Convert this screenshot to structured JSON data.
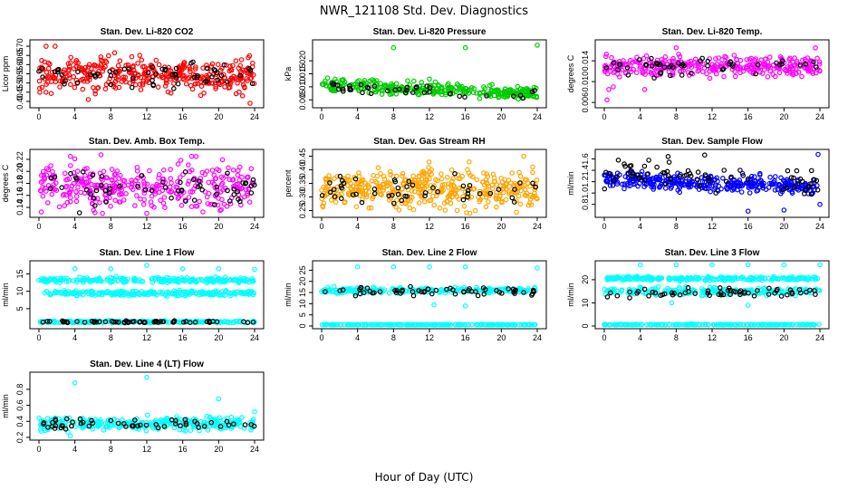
{
  "page": {
    "title": "NWR_121108 Std. Dev. Diagnostics",
    "x_axis_label": "Hour of Day (UTC)"
  },
  "chart_data": [
    {
      "type": "scatter",
      "title": "Stan. Dev. Li-820 CO2",
      "ylabel": "Licor ppm",
      "color": "#ff0000",
      "xlim": [
        0,
        24
      ],
      "ylim": [
        0.38,
        0.72
      ],
      "xticks": [
        "0",
        "4",
        "8",
        "12",
        "16",
        "20",
        "24"
      ],
      "yticks": [
        "0.40",
        "0.45",
        "0.50",
        "0.55",
        "0.60",
        "0.65",
        "0.70"
      ],
      "series": [
        {
          "name": "main",
          "mean": 0.545,
          "spread": 0.045,
          "count": 360
        },
        {
          "name": "black",
          "mean": 0.545,
          "spread": 0.035,
          "count": 60
        }
      ],
      "outliers": [
        [
          0.8,
          0.7
        ],
        [
          1.8,
          0.7
        ],
        [
          23.5,
          0.39
        ],
        [
          5.5,
          0.41
        ]
      ]
    },
    {
      "type": "scatter",
      "title": "Stan. Dev. Li-820 Pressure",
      "ylabel": "kPa",
      "color": "#00cc00",
      "xlim": [
        0,
        24
      ],
      "ylim": [
        0.003,
        0.027
      ],
      "xticks": [
        "0",
        "4",
        "8",
        "12",
        "16",
        "20",
        "24"
      ],
      "yticks": [
        "0.005",
        "0.010",
        "0.015",
        "0.020"
      ],
      "series": [
        {
          "name": "main",
          "mean_start": 0.0105,
          "mean_end": 0.0075,
          "spread": 0.0012,
          "count": 320
        },
        {
          "name": "black",
          "mean_start": 0.01,
          "mean_end": 0.007,
          "spread": 0.001,
          "count": 40
        }
      ],
      "outliers": [
        [
          8,
          0.025
        ],
        [
          16,
          0.025
        ],
        [
          24,
          0.026
        ],
        [
          1.5,
          0.013
        ],
        [
          12,
          0.013
        ]
      ]
    },
    {
      "type": "scatter",
      "title": "Stan. Dev. Li-820 Temp.",
      "ylabel": "degrees C",
      "color": "#ff00ff",
      "xlim": [
        0,
        24
      ],
      "ylim": [
        0.0055,
        0.0175
      ],
      "xticks": [
        "0",
        "4",
        "8",
        "12",
        "16",
        "20",
        "24"
      ],
      "yticks": [
        "0.006",
        "0.010",
        "0.014"
      ],
      "series": [
        {
          "name": "main",
          "mean": 0.013,
          "spread": 0.001,
          "count": 330
        },
        {
          "name": "black",
          "mean": 0.0128,
          "spread": 0.0008,
          "count": 50
        }
      ],
      "outliers": [
        [
          0.3,
          0.0065
        ],
        [
          0.5,
          0.0085
        ],
        [
          1.0,
          0.009
        ],
        [
          8,
          0.0165
        ],
        [
          23.5,
          0.0165
        ],
        [
          4.5,
          0.0085
        ]
      ]
    },
    {
      "type": "scatter",
      "title": "Stan. Dev. Amb. Box Temp.",
      "ylabel": "degrees C",
      "color": "#ff00ff",
      "xlim": [
        0,
        24
      ],
      "ylim": [
        0.128,
        0.232
      ],
      "xticks": [
        "0",
        "4",
        "8",
        "12",
        "16",
        "20",
        "24"
      ],
      "yticks": [
        "0.14",
        "0.16",
        "0.18",
        "0.20",
        "0.22"
      ],
      "series": [
        {
          "name": "main",
          "mean": 0.175,
          "spread": 0.018,
          "count": 340
        },
        {
          "name": "black",
          "mean": 0.17,
          "spread": 0.015,
          "count": 60
        }
      ],
      "outliers": [
        [
          12,
          0.13
        ],
        [
          3.5,
          0.225
        ],
        [
          17,
          0.225
        ]
      ]
    },
    {
      "type": "scatter",
      "title": "Stan. Dev. Gas Stream RH",
      "ylabel": "percent",
      "color": "#ffa500",
      "xlim": [
        0,
        24
      ],
      "ylim": [
        0.235,
        0.465
      ],
      "xticks": [
        "0",
        "4",
        "8",
        "12",
        "16",
        "20",
        "24"
      ],
      "yticks": [
        "0.25",
        "0.30",
        "0.35",
        "0.40",
        "0.45"
      ],
      "series": [
        {
          "name": "main",
          "mean": 0.33,
          "spread": 0.035,
          "count": 420
        },
        {
          "name": "black",
          "mean": 0.33,
          "spread": 0.03,
          "count": 50
        }
      ],
      "outliers": [
        [
          22.5,
          0.45
        ],
        [
          16.5,
          0.24
        ]
      ]
    },
    {
      "type": "scatter",
      "title": "Stan. Dev. Sample Flow",
      "ylabel": "ml/min",
      "color": "#0000ff",
      "xlim": [
        0,
        24
      ],
      "ylim": [
        0.62,
        1.72
      ],
      "xticks": [
        "0",
        "4",
        "8",
        "12",
        "16",
        "20",
        "24"
      ],
      "yticks": [
        "0.8",
        "1.0",
        "1.2",
        "1.4",
        "1.6"
      ],
      "series": [
        {
          "name": "main",
          "mean_start": 1.25,
          "mean_end": 1.1,
          "spread": 0.07,
          "count": 360
        },
        {
          "name": "black",
          "mean_start": 1.38,
          "mean_end": 1.2,
          "spread": 0.15,
          "count": 70
        }
      ],
      "outliers": [
        [
          16,
          0.68
        ],
        [
          20,
          0.7
        ],
        [
          24,
          0.8
        ],
        [
          23.8,
          1.68
        ]
      ]
    },
    {
      "type": "scatter",
      "title": "Stan. Dev. Line 1 Flow",
      "ylabel": "ml/min",
      "color": "#00ffff",
      "xlim": [
        0,
        24
      ],
      "ylim": [
        0,
        18
      ],
      "xticks": [
        "0",
        "4",
        "8",
        "12",
        "16",
        "20",
        "24"
      ],
      "yticks": [
        "5",
        "10",
        "15"
      ],
      "series": [
        {
          "name": "band_high",
          "mean": 13.2,
          "spread": 0.35,
          "count": 240
        },
        {
          "name": "band_mid",
          "mean": 9.5,
          "spread": 0.35,
          "count": 240
        },
        {
          "name": "band_low",
          "mean": 1.2,
          "spread": 0.15,
          "count": 200
        },
        {
          "name": "black",
          "mean": 1.2,
          "spread": 0.15,
          "count": 60
        }
      ],
      "outliers": [
        [
          4,
          16.5
        ],
        [
          8,
          16.5
        ],
        [
          12,
          17.5
        ],
        [
          16,
          16.5
        ],
        [
          20,
          16.5
        ],
        [
          24,
          16.3
        ]
      ]
    },
    {
      "type": "scatter",
      "title": "Stan. Dev. Line 2 Flow",
      "ylabel": "ml/min",
      "color": "#00ffff",
      "xlim": [
        0,
        24
      ],
      "ylim": [
        0,
        28
      ],
      "xticks": [
        "0",
        "4",
        "8",
        "12",
        "16",
        "20",
        "24"
      ],
      "yticks": [
        "0",
        "5",
        "10",
        "15",
        "20",
        "25"
      ],
      "series": [
        {
          "name": "band_high",
          "mean": 16.0,
          "spread": 0.6,
          "count": 250
        },
        {
          "name": "band_low",
          "mean": 0.4,
          "spread": 0.15,
          "count": 220
        },
        {
          "name": "black",
          "mean": 15.5,
          "spread": 1.0,
          "count": 60
        }
      ],
      "outliers": [
        [
          4,
          26.5
        ],
        [
          8,
          26.5
        ],
        [
          12,
          26.5
        ],
        [
          16,
          26.5
        ],
        [
          24,
          26.0
        ],
        [
          12.5,
          9.5
        ],
        [
          16,
          9.0
        ]
      ]
    },
    {
      "type": "scatter",
      "title": "Stan. Dev. Line 3 Flow",
      "ylabel": "ml/min",
      "color": "#00ffff",
      "xlim": [
        0,
        24
      ],
      "ylim": [
        0,
        27
      ],
      "xticks": [
        "0",
        "4",
        "8",
        "12",
        "16",
        "20",
        "24"
      ],
      "yticks": [
        "0",
        "10",
        "20"
      ],
      "series": [
        {
          "name": "band_high",
          "mean": 20.5,
          "spread": 0.4,
          "count": 250
        },
        {
          "name": "band_mid",
          "mean": 15.0,
          "spread": 0.8,
          "count": 220
        },
        {
          "name": "band_low",
          "mean": 0.5,
          "spread": 0.15,
          "count": 220
        },
        {
          "name": "black",
          "mean": 14.5,
          "spread": 1.0,
          "count": 60
        }
      ],
      "outliers": [
        [
          4,
          26.5
        ],
        [
          8,
          26.5
        ],
        [
          12,
          26.5
        ],
        [
          16,
          26.5
        ],
        [
          20,
          26.5
        ],
        [
          24,
          26.5
        ],
        [
          16,
          9.0
        ],
        [
          7.5,
          10
        ]
      ]
    },
    {
      "type": "scatter",
      "title": "Stan. Dev. Line 4 (LT) Flow",
      "ylabel": "ml/min",
      "color": "#00ffff",
      "xlim": [
        0,
        24
      ],
      "ylim": [
        0.2,
        0.98
      ],
      "xticks": [
        "0",
        "4",
        "8",
        "12",
        "16",
        "20",
        "24"
      ],
      "yticks": [
        "0.2",
        "0.4",
        "0.6",
        "0.8"
      ],
      "series": [
        {
          "name": "main",
          "mean": 0.37,
          "spread": 0.04,
          "count": 320
        },
        {
          "name": "black",
          "mean": 0.37,
          "spread": 0.035,
          "count": 55
        }
      ],
      "outliers": [
        [
          4,
          0.88
        ],
        [
          12,
          0.95
        ],
        [
          20,
          0.68
        ],
        [
          24,
          0.52
        ],
        [
          3.5,
          0.22
        ]
      ]
    }
  ]
}
